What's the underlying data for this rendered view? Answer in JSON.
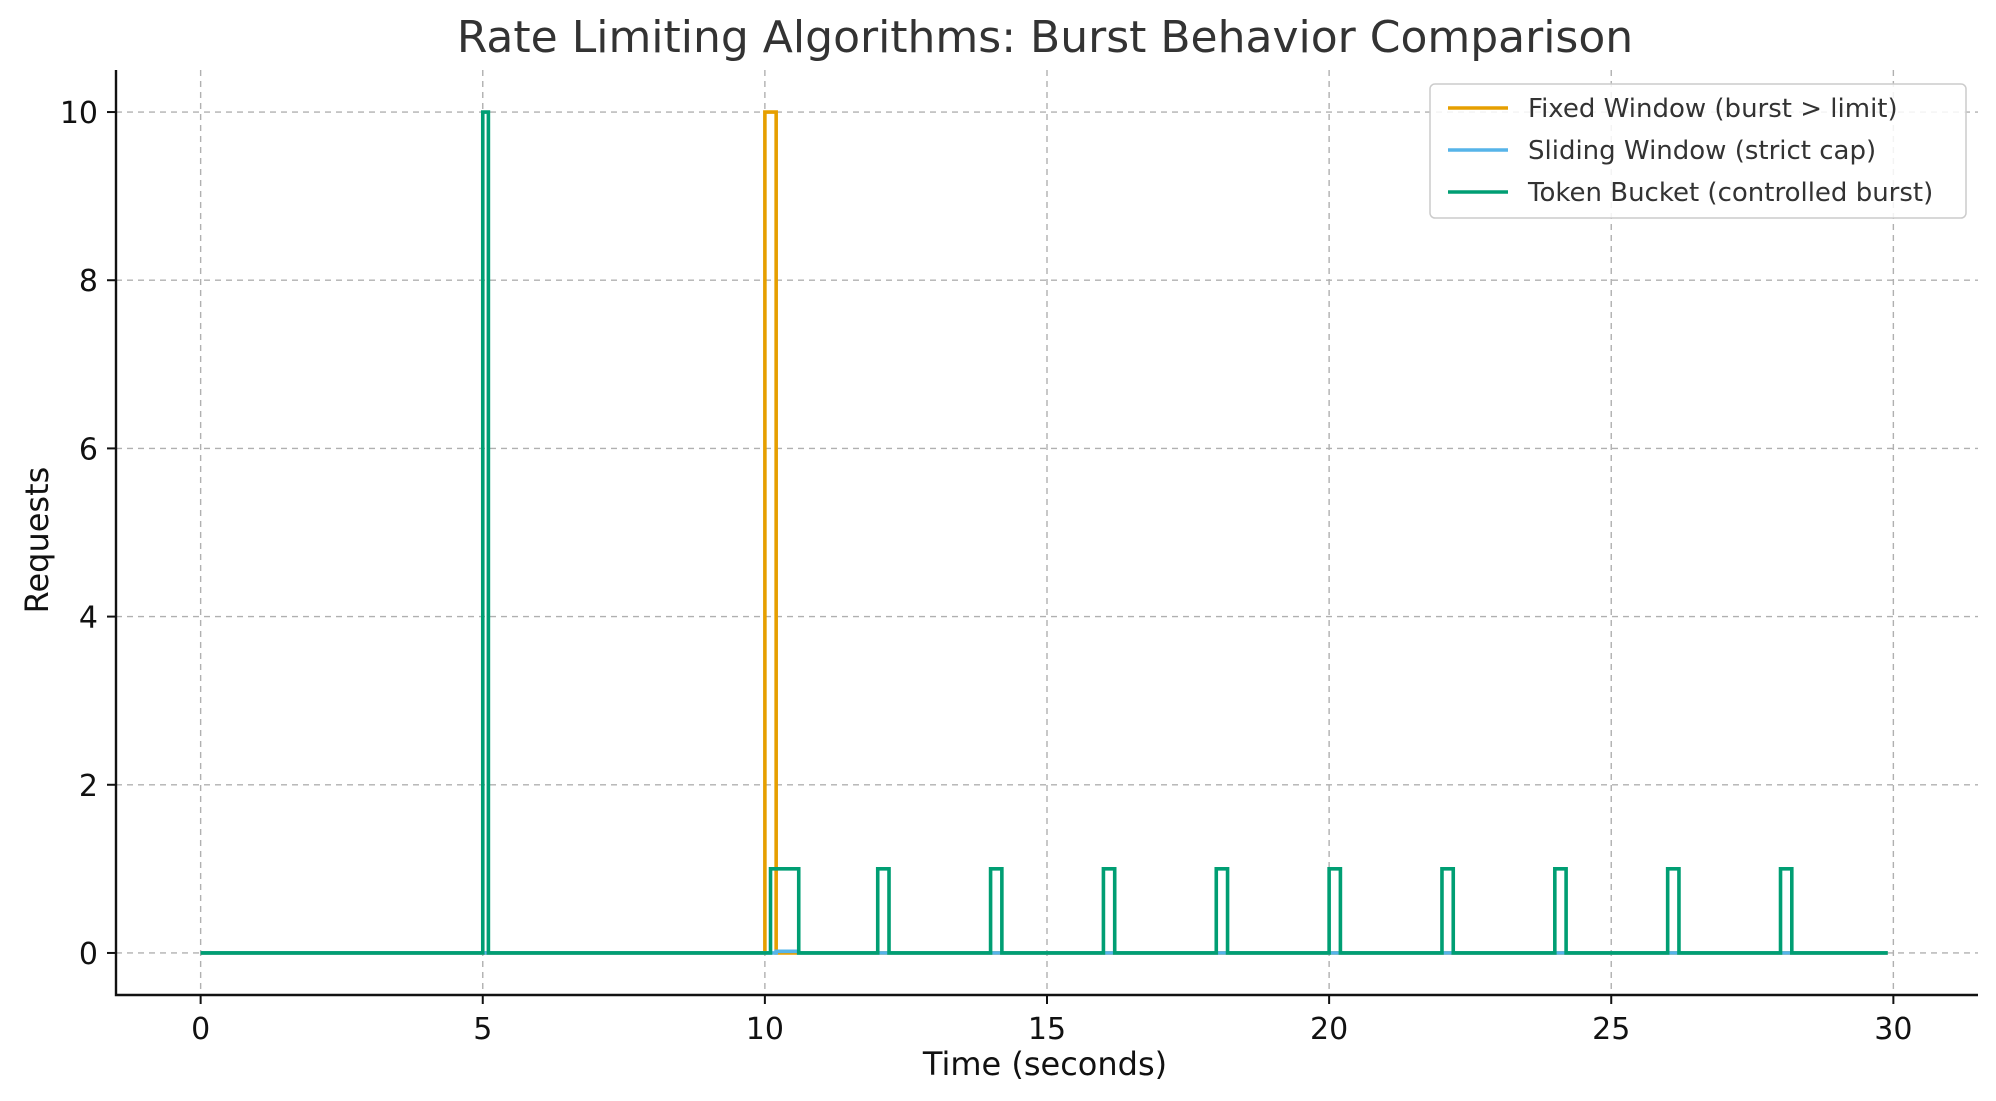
{
  "chart_data": {
    "type": "line",
    "title": "Rate Limiting Algorithms: Burst Behavior Comparison",
    "xlabel": "Time (seconds)",
    "ylabel": "Requests",
    "xlim": [
      -1.5,
      31.5
    ],
    "ylim": [
      -0.5,
      10.5
    ],
    "x_ticks": [
      0,
      5,
      10,
      15,
      20,
      25,
      30
    ],
    "y_ticks": [
      0,
      2,
      4,
      6,
      8,
      10
    ],
    "grid": true,
    "legend_position": "top-right",
    "step_width": 0.1,
    "series": [
      {
        "name": "Fixed Window (burst > limit)",
        "color": "#E69F00",
        "x": [
          0,
          9.9,
          10.0,
          10.1,
          10.2,
          10.3,
          29.9
        ],
        "y": [
          0,
          0,
          10,
          10,
          0,
          0,
          0
        ]
      },
      {
        "name": "Sliding Window (strict cap)",
        "color": "#56B4E9",
        "x": [
          0,
          10.1,
          10.2,
          10.3,
          10.4,
          10.5,
          10.6,
          12.0,
          14.0,
          16.0,
          18.0,
          20.0,
          22.0,
          24.0,
          26.0,
          28.0,
          29.9
        ],
        "y": [
          0,
          0,
          0.02,
          0.02,
          0.02,
          0.02,
          0,
          0,
          0,
          0,
          0,
          0,
          0,
          0,
          0,
          0,
          0
        ]
      },
      {
        "name": "Token Bucket (controlled burst)",
        "color": "#009E73",
        "x": [
          0,
          5.0,
          5.1,
          10.1,
          10.2,
          10.3,
          10.4,
          10.5,
          10.6,
          12.0,
          12.1,
          12.2,
          14.0,
          14.1,
          14.2,
          16.0,
          16.1,
          16.2,
          18.0,
          18.1,
          18.2,
          20.0,
          20.1,
          20.2,
          22.0,
          22.1,
          22.2,
          24.0,
          24.1,
          24.2,
          26.0,
          26.1,
          26.2,
          28.0,
          28.1,
          28.2,
          29.9
        ],
        "y": [
          0,
          10,
          0,
          1,
          1,
          1,
          1,
          1,
          0,
          1,
          1,
          0,
          1,
          1,
          0,
          1,
          1,
          0,
          1,
          1,
          0,
          1,
          1,
          0,
          1,
          1,
          0,
          1,
          1,
          0,
          1,
          1,
          0,
          1,
          1,
          0,
          0
        ]
      }
    ]
  }
}
